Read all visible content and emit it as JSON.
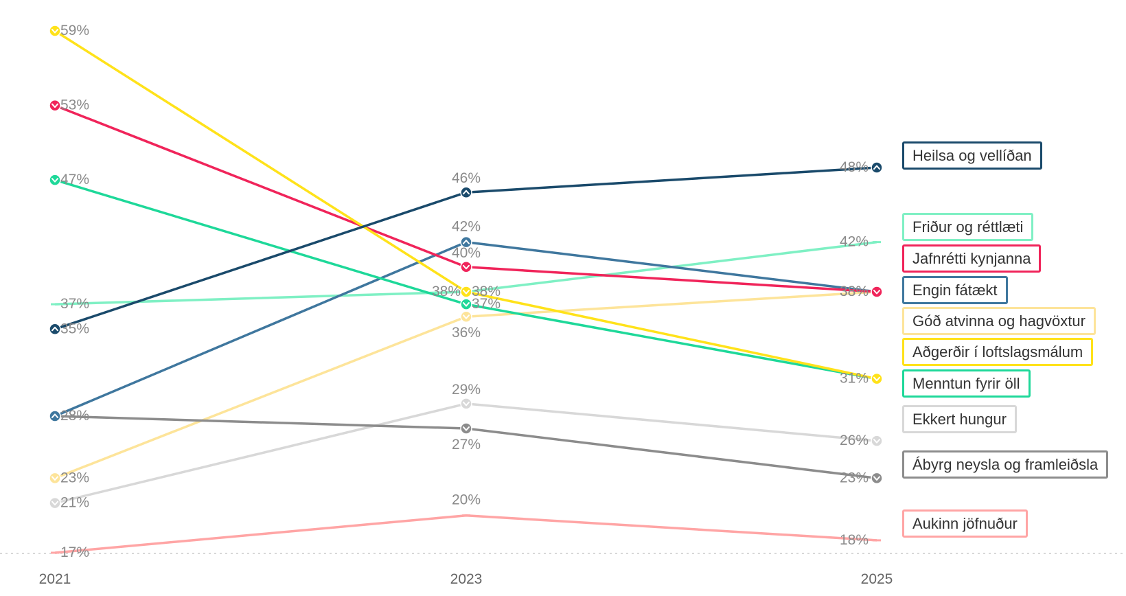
{
  "chart_data": {
    "type": "line",
    "x": [
      "2021",
      "2023",
      "2025"
    ],
    "ylim": [
      15,
      61
    ],
    "grid": false,
    "legend_position": "right",
    "series": [
      {
        "name": "Heilsa og vellíðan",
        "values": [
          35,
          46,
          48
        ],
        "labels": [
          "35%",
          "46%",
          "48%"
        ],
        "color": "#1a4a6b",
        "marker": "up"
      },
      {
        "name": "Friður og réttlæti",
        "values": [
          37,
          38,
          42
        ],
        "labels": [
          "37%",
          "38%",
          "42%"
        ],
        "color": "#7ff0c4",
        "marker": "none"
      },
      {
        "name": "Jafnrétti kynjanna",
        "values": [
          53,
          40,
          38
        ],
        "labels": [
          "53%",
          "40%",
          "38%"
        ],
        "color": "#f0245a",
        "marker": "down"
      },
      {
        "name": "Engin fátækt",
        "values": [
          28,
          42,
          38
        ],
        "labels": [
          "28%",
          "42%",
          "38%"
        ],
        "color": "#3f779e",
        "marker": "up"
      },
      {
        "name": "Góð atvinna og hagvöxtur",
        "values": [
          23,
          36,
          38
        ],
        "labels": [
          "23%",
          "36%",
          "38%"
        ],
        "color": "#fde49a",
        "marker": "down"
      },
      {
        "name": "Aðgerðir í loftslagsmálum",
        "values": [
          59,
          38,
          31
        ],
        "labels": [
          "59%",
          "38%",
          "31%"
        ],
        "color": "#ffe21a",
        "marker": "down"
      },
      {
        "name": "Menntun fyrir öll",
        "values": [
          47,
          37,
          31
        ],
        "labels": [
          "47%",
          "37%",
          "31%"
        ],
        "color": "#1ed899",
        "marker": "down"
      },
      {
        "name": "Ekkert hungur",
        "values": [
          21,
          29,
          26
        ],
        "labels": [
          "21%",
          "29%",
          "26%"
        ],
        "color": "#d8d8d8",
        "marker": "down"
      },
      {
        "name": "Ábyrg neysla og framleiðsla",
        "values": [
          28,
          27,
          23
        ],
        "labels": [
          "28%",
          "27%",
          "23%"
        ],
        "color": "#8c8c8c",
        "marker": "down"
      },
      {
        "name": "Aukinn jöfnuður",
        "values": [
          17,
          20,
          18
        ],
        "labels": [
          "17%",
          "20%",
          "18%"
        ],
        "color": "#ffa5a5",
        "marker": "none"
      }
    ]
  }
}
